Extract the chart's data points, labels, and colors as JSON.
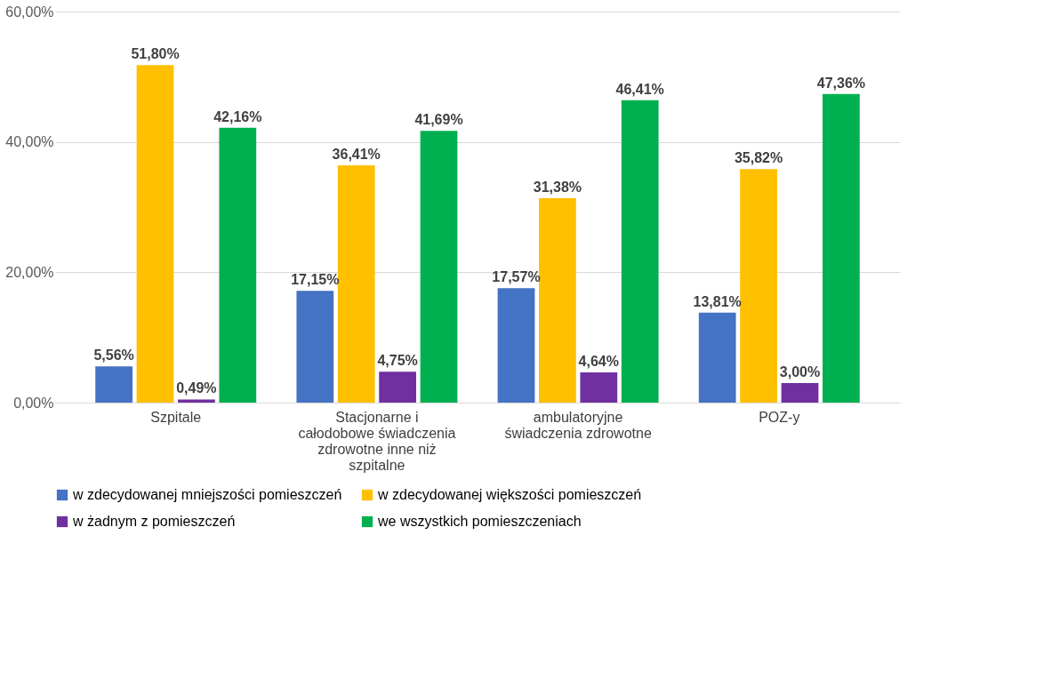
{
  "chart_data": {
    "type": "bar",
    "categories": [
      "Szpitale",
      "Stacjonarne i całodobowe świadczenia zdrowotne inne niż szpitalne",
      "ambulatoryjne świadczenia zdrowotne",
      "POZ-y"
    ],
    "series": [
      {
        "name": "w zdecydowanej mniejszości pomieszczeń",
        "color": "#4472c4",
        "values": [
          5.56,
          17.15,
          17.57,
          13.81
        ],
        "value_labels": [
          "5,56%",
          "17,15%",
          "17,57%",
          "13,81%"
        ]
      },
      {
        "name": "w zdecydowanej większości pomieszczeń",
        "color": "#ffc000",
        "values": [
          51.8,
          36.41,
          31.38,
          35.82
        ],
        "value_labels": [
          "51,80%",
          "36,41%",
          "31,38%",
          "35,82%"
        ]
      },
      {
        "name": "w żadnym z pomieszczeń",
        "color": "#7030a0",
        "values": [
          0.49,
          4.75,
          4.64,
          3.0
        ],
        "value_labels": [
          "0,49%",
          "4,75%",
          "4,64%",
          "3,00%"
        ]
      },
      {
        "name": "we wszystkich pomieszczeniach",
        "color": "#00b050",
        "values": [
          42.16,
          41.69,
          46.41,
          47.36
        ],
        "value_labels": [
          "42,16%",
          "41,69%",
          "46,41%",
          "47,36%"
        ]
      }
    ],
    "ylim": [
      0,
      60
    ],
    "yticks": [
      {
        "value": 0,
        "label": "0,00%"
      },
      {
        "value": 20,
        "label": "20,00%"
      },
      {
        "value": 40,
        "label": "40,00%"
      },
      {
        "value": 60,
        "label": "60,00%"
      }
    ],
    "grid": "y",
    "legend": "bottom"
  }
}
